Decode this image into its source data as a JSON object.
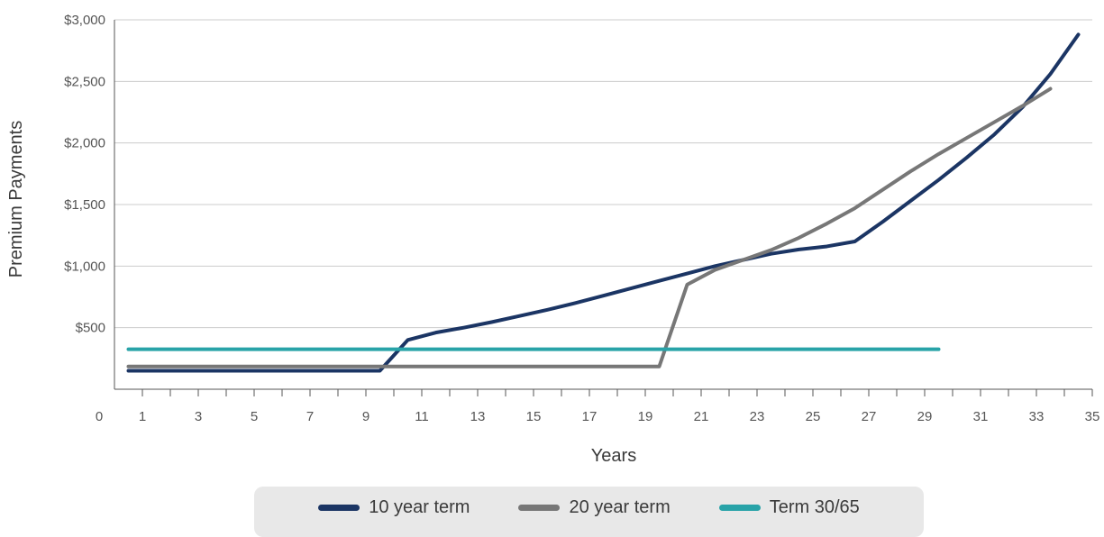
{
  "chart_data": {
    "type": "line",
    "xlabel": "Years",
    "ylabel": "Premium Payments",
    "xlim": [
      0,
      35
    ],
    "ylim": [
      0,
      3000
    ],
    "x_ticks": [
      "0",
      "1",
      "3",
      "5",
      "7",
      "9",
      "11",
      "13",
      "15",
      "17",
      "19",
      "21",
      "23",
      "25",
      "27",
      "29",
      "31",
      "33",
      "35"
    ],
    "y_ticks": [
      "$500",
      "$1,000",
      "$1,500",
      "$2,000",
      "$2,500",
      "$3,000"
    ],
    "grid": "horizontal",
    "legend_position": "bottom",
    "series": [
      {
        "name": "10 year term",
        "color": "#1b3564",
        "x": [
          0.5,
          1.5,
          2.5,
          3.5,
          4.5,
          5.5,
          6.5,
          7.5,
          8.5,
          9.5,
          10.5,
          11.5,
          12.5,
          13.5,
          14.5,
          15.5,
          16.5,
          17.5,
          18.5,
          19.5,
          20.5,
          21.5,
          22.5,
          23.5,
          24.5,
          25.5,
          26.5,
          27.5,
          28.5,
          29.5,
          30.5,
          31.5,
          32.5,
          33.5,
          34.5
        ],
        "values": [
          150,
          150,
          150,
          150,
          150,
          150,
          150,
          150,
          150,
          150,
          400,
          460,
          500,
          545,
          595,
          645,
          700,
          760,
          820,
          880,
          940,
          1000,
          1050,
          1100,
          1135,
          1160,
          1200,
          1360,
          1530,
          1700,
          1880,
          2070,
          2290,
          2560,
          2880
        ]
      },
      {
        "name": "20 year term",
        "color": "#777777",
        "x": [
          0.5,
          1.5,
          2.5,
          3.5,
          4.5,
          5.5,
          6.5,
          7.5,
          8.5,
          9.5,
          10.5,
          11.5,
          12.5,
          13.5,
          14.5,
          15.5,
          16.5,
          17.5,
          18.5,
          19.5,
          20.5,
          21.5,
          22.5,
          23.5,
          24.5,
          25.5,
          26.5,
          27.5,
          28.5,
          29.5,
          30.5,
          31.5,
          32.5,
          33.5
        ],
        "values": [
          185,
          185,
          185,
          185,
          185,
          185,
          185,
          185,
          185,
          185,
          185,
          185,
          185,
          185,
          185,
          185,
          185,
          185,
          185,
          185,
          850,
          970,
          1050,
          1130,
          1230,
          1345,
          1470,
          1620,
          1770,
          1910,
          2040,
          2170,
          2300,
          2440
        ]
      },
      {
        "name": "Term 30/65",
        "color": "#28a3a8",
        "x": [
          0.5,
          29.5
        ],
        "values": [
          325,
          325
        ]
      }
    ]
  }
}
